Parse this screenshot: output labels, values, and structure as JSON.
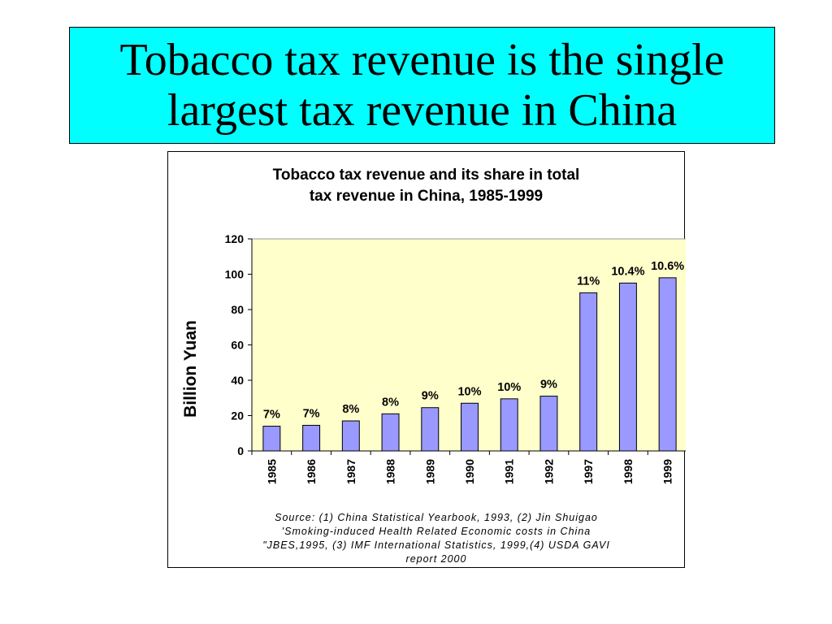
{
  "slide": {
    "title_line1": "Tobacco tax revenue is the single",
    "title_line2": "largest tax revenue in China"
  },
  "colors": {
    "title_bg": "#00ffff",
    "plot_bg": "#ffffcc",
    "bar_fill": "#9999ff",
    "bar_stroke": "#000000"
  },
  "chart_data": {
    "type": "bar",
    "title_line1": "Tobacco tax revenue and its share in total",
    "title_line2": "tax revenue in China, 1985-1999",
    "xlabel": "",
    "ylabel": "Billion Yuan",
    "ylim": [
      0,
      120
    ],
    "yticks": [
      "0",
      "20",
      "40",
      "60",
      "80",
      "100",
      "120"
    ],
    "grid": false,
    "categories": [
      "1985",
      "1986",
      "1987",
      "1988",
      "1989",
      "1990",
      "1991",
      "1992",
      "1997",
      "1998",
      "1999"
    ],
    "values": [
      14,
      14.5,
      17,
      21,
      24.5,
      27,
      29.5,
      31,
      89.5,
      95,
      98
    ],
    "data_labels": [
      "7%",
      "7%",
      "8%",
      "8%",
      "9%",
      "10%",
      "10%",
      "9%",
      "11%",
      "10.4%",
      "10.6%"
    ],
    "source_lines": [
      "Source: (1) China Statistical Yearbook, 1993, (2) Jin Shuigao",
      "'Smoking-induced Health Related Economic costs in China",
      "\"JBES,1995, (3)  IMF International Statistics, 1999,(4) USDA GAVI",
      "report 2000"
    ]
  }
}
